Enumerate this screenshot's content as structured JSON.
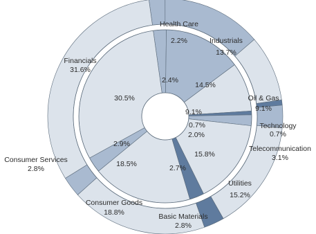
{
  "chart_data": {
    "type": "pie",
    "subtype": "nested-donut",
    "colors": {
      "light": "#dce3eb",
      "mid": "#a9bad0",
      "dark": "#5f7b9e",
      "gap": "#ffffff",
      "edge": "#5a6a7a"
    },
    "outer": {
      "slices": [
        {
          "name": "Health Care",
          "value": 2.2,
          "label_text": "2.2%",
          "shade": "mid"
        },
        {
          "name": "Industrials",
          "value": 13.7,
          "label_text": "13.7%",
          "shade": "mid"
        },
        {
          "name": "Oil & Gas",
          "value": 9.1,
          "label_text": "9.1%",
          "shade": "light"
        },
        {
          "name": "Technology",
          "value": 0.7,
          "label_text": "0.7%",
          "shade": "dark"
        },
        {
          "name": "Telecommunication",
          "value": 3.1,
          "label_text": "3.1%",
          "shade": "mid"
        },
        {
          "name": "Utilities",
          "value": 15.2,
          "label_text": "15.2%",
          "shade": "light"
        },
        {
          "name": "Basic Materials",
          "value": 2.8,
          "label_text": "2.8%",
          "shade": "dark"
        },
        {
          "name": "Consumer Goods",
          "value": 18.8,
          "label_text": "18.8%",
          "shade": "light"
        },
        {
          "name": "Consumer Services",
          "value": 2.8,
          "label_text": "2.8%",
          "shade": "mid"
        },
        {
          "name": "Financials",
          "value": 31.6,
          "label_text": "31.6%",
          "shade": "light"
        }
      ]
    },
    "inner": {
      "slices": [
        {
          "name": "Health Care",
          "value": 2.4,
          "label_text": "2.4%",
          "shade": "mid"
        },
        {
          "name": "Industrials",
          "value": 14.5,
          "label_text": "14.5%",
          "shade": "mid"
        },
        {
          "name": "Oil & Gas",
          "value": 9.1,
          "label_text": "9.1%",
          "shade": "light"
        },
        {
          "name": "Technology",
          "value": 0.7,
          "label_text": "0.7%",
          "shade": "dark"
        },
        {
          "name": "Telecommunication",
          "value": 2.0,
          "label_text": "2.0%",
          "shade": "mid"
        },
        {
          "name": "Utilities",
          "value": 15.8,
          "label_text": "15.8%",
          "shade": "light"
        },
        {
          "name": "Basic Materials",
          "value": 2.7,
          "label_text": "2.7%",
          "shade": "dark"
        },
        {
          "name": "Consumer Goods",
          "value": 18.5,
          "label_text": "18.5%",
          "shade": "light"
        },
        {
          "name": "Consumer Services",
          "value": 2.9,
          "label_text": "2.9%",
          "shade": "mid"
        },
        {
          "name": "Financials",
          "value": 30.5,
          "label_text": "30.5%",
          "shade": "light"
        }
      ]
    }
  }
}
